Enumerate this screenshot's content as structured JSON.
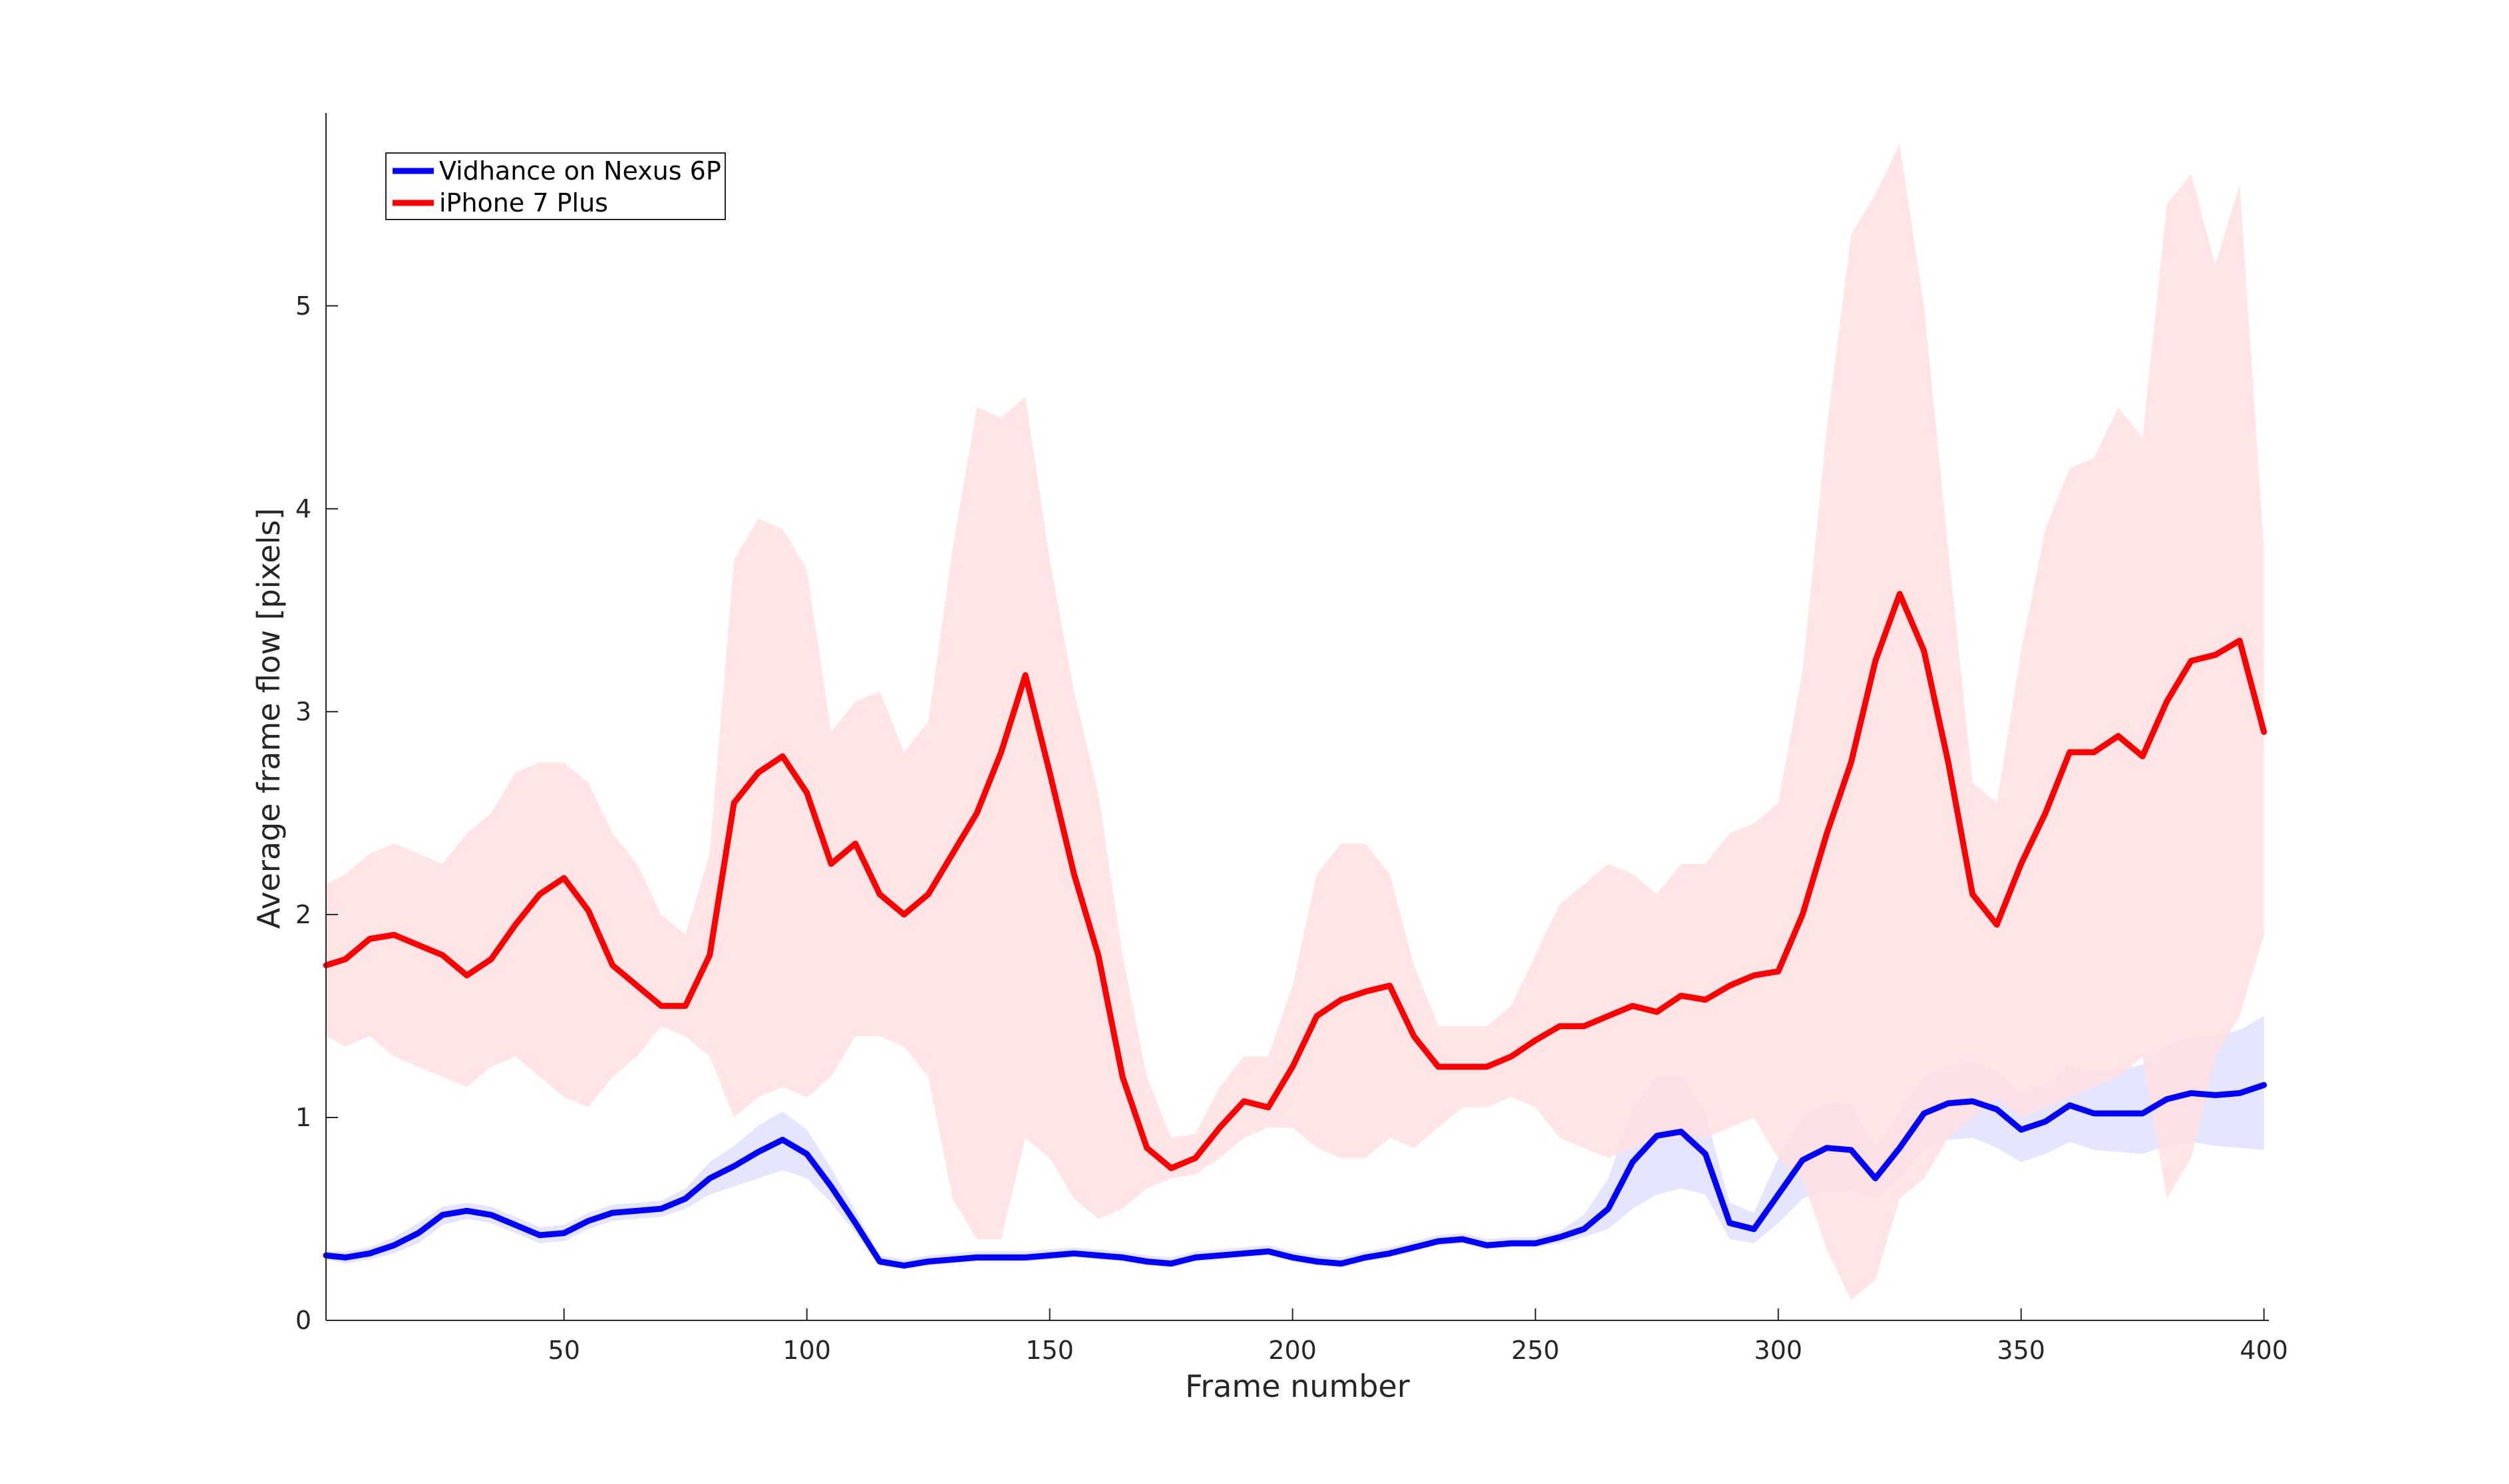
{
  "chart_data": {
    "type": "line",
    "title": "",
    "xlabel": "Frame number",
    "ylabel": "Average frame flow [pixels]",
    "xlim": [
      1,
      401
    ],
    "ylim": [
      0,
      5.95
    ],
    "xticks": [
      50,
      100,
      150,
      200,
      250,
      300,
      350,
      400
    ],
    "yticks": [
      0,
      1,
      2,
      3,
      4,
      5
    ],
    "grid": false,
    "legend_position": "top-left",
    "x": [
      1,
      5,
      10,
      15,
      20,
      25,
      30,
      35,
      40,
      45,
      50,
      55,
      60,
      65,
      70,
      75,
      80,
      85,
      90,
      95,
      100,
      105,
      110,
      115,
      120,
      125,
      130,
      135,
      140,
      145,
      150,
      155,
      160,
      165,
      170,
      175,
      180,
      185,
      190,
      195,
      200,
      205,
      210,
      215,
      220,
      225,
      230,
      235,
      240,
      245,
      250,
      255,
      260,
      265,
      270,
      275,
      280,
      285,
      290,
      295,
      300,
      305,
      310,
      315,
      320,
      325,
      330,
      335,
      340,
      345,
      350,
      355,
      360,
      365,
      370,
      375,
      380,
      385,
      390,
      395,
      400
    ],
    "series": [
      {
        "name": "Vidhance on Nexus 6P",
        "color": "#0000ff",
        "band_color": "#dcdcff",
        "values": [
          0.32,
          0.31,
          0.33,
          0.37,
          0.43,
          0.52,
          0.54,
          0.52,
          0.47,
          0.42,
          0.43,
          0.49,
          0.53,
          0.54,
          0.55,
          0.6,
          0.7,
          0.76,
          0.83,
          0.89,
          0.82,
          0.66,
          0.48,
          0.29,
          0.27,
          0.29,
          0.3,
          0.31,
          0.31,
          0.31,
          0.32,
          0.33,
          0.32,
          0.31,
          0.29,
          0.28,
          0.31,
          0.32,
          0.33,
          0.34,
          0.31,
          0.29,
          0.28,
          0.31,
          0.33,
          0.36,
          0.39,
          0.4,
          0.37,
          0.38,
          0.38,
          0.41,
          0.45,
          0.55,
          0.78,
          0.91,
          0.93,
          0.82,
          0.48,
          0.45,
          0.62,
          0.79,
          0.85,
          0.84,
          0.7,
          0.85,
          1.02,
          1.07,
          1.08,
          1.04,
          0.94,
          0.98,
          1.06,
          1.02,
          1.02,
          1.02,
          1.09,
          1.12,
          1.11,
          1.12,
          1.16
        ],
        "band_lower": [
          0.3,
          0.28,
          0.3,
          0.33,
          0.38,
          0.47,
          0.5,
          0.48,
          0.43,
          0.38,
          0.39,
          0.45,
          0.49,
          0.5,
          0.51,
          0.55,
          0.62,
          0.66,
          0.7,
          0.74,
          0.7,
          0.58,
          0.43,
          0.27,
          0.25,
          0.27,
          0.28,
          0.29,
          0.29,
          0.29,
          0.3,
          0.31,
          0.3,
          0.29,
          0.27,
          0.26,
          0.29,
          0.3,
          0.31,
          0.32,
          0.29,
          0.27,
          0.26,
          0.29,
          0.31,
          0.34,
          0.37,
          0.38,
          0.35,
          0.36,
          0.36,
          0.38,
          0.41,
          0.45,
          0.55,
          0.62,
          0.65,
          0.62,
          0.4,
          0.38,
          0.48,
          0.6,
          0.64,
          0.64,
          0.6,
          0.7,
          0.85,
          0.89,
          0.9,
          0.85,
          0.78,
          0.82,
          0.88,
          0.84,
          0.83,
          0.82,
          0.86,
          0.88,
          0.86,
          0.85,
          0.84
        ],
        "band_upper": [
          0.34,
          0.34,
          0.36,
          0.41,
          0.48,
          0.56,
          0.58,
          0.56,
          0.51,
          0.46,
          0.47,
          0.53,
          0.57,
          0.58,
          0.59,
          0.65,
          0.78,
          0.86,
          0.96,
          1.03,
          0.94,
          0.75,
          0.54,
          0.32,
          0.3,
          0.32,
          0.33,
          0.34,
          0.34,
          0.34,
          0.35,
          0.36,
          0.35,
          0.34,
          0.32,
          0.31,
          0.34,
          0.35,
          0.36,
          0.37,
          0.34,
          0.32,
          0.31,
          0.34,
          0.36,
          0.39,
          0.42,
          0.43,
          0.4,
          0.41,
          0.41,
          0.44,
          0.52,
          0.7,
          1.05,
          1.2,
          1.2,
          1.02,
          0.58,
          0.53,
          0.8,
          1.0,
          1.07,
          1.06,
          0.85,
          1.02,
          1.2,
          1.26,
          1.27,
          1.23,
          1.12,
          1.16,
          1.26,
          1.22,
          1.24,
          1.26,
          1.35,
          1.4,
          1.4,
          1.43,
          1.5
        ]
      },
      {
        "name": "iPhone 7 Plus",
        "color": "#ff0000",
        "band_color": "#ffe0e0",
        "values": [
          1.75,
          1.78,
          1.88,
          1.9,
          1.85,
          1.8,
          1.7,
          1.78,
          1.95,
          2.1,
          2.18,
          2.02,
          1.75,
          1.65,
          1.55,
          1.55,
          1.8,
          2.55,
          2.7,
          2.78,
          2.6,
          2.25,
          2.35,
          2.1,
          2.0,
          2.1,
          2.3,
          2.5,
          2.8,
          3.18,
          2.7,
          2.2,
          1.8,
          1.2,
          0.85,
          0.75,
          0.8,
          0.95,
          1.08,
          1.05,
          1.25,
          1.5,
          1.58,
          1.62,
          1.65,
          1.4,
          1.25,
          1.25,
          1.25,
          1.3,
          1.38,
          1.45,
          1.45,
          1.5,
          1.55,
          1.52,
          1.6,
          1.58,
          1.65,
          1.7,
          1.72,
          2.0,
          2.4,
          2.75,
          3.25,
          3.58,
          3.3,
          2.75,
          2.1,
          1.95,
          2.25,
          2.5,
          2.8,
          2.8,
          2.88,
          2.78,
          3.05,
          3.25,
          3.28,
          3.35,
          2.9
        ],
        "band_lower": [
          1.4,
          1.35,
          1.4,
          1.3,
          1.25,
          1.2,
          1.15,
          1.25,
          1.3,
          1.2,
          1.1,
          1.05,
          1.2,
          1.3,
          1.45,
          1.4,
          1.3,
          1.0,
          1.1,
          1.15,
          1.1,
          1.2,
          1.4,
          1.4,
          1.35,
          1.2,
          0.6,
          0.4,
          0.4,
          0.9,
          0.8,
          0.6,
          0.5,
          0.55,
          0.65,
          0.7,
          0.72,
          0.8,
          0.9,
          0.95,
          0.95,
          0.85,
          0.8,
          0.8,
          0.9,
          0.85,
          0.95,
          1.05,
          1.05,
          1.1,
          1.05,
          0.9,
          0.85,
          0.8,
          0.85,
          0.9,
          0.9,
          0.9,
          0.95,
          1.0,
          0.8,
          0.7,
          0.35,
          0.1,
          0.2,
          0.6,
          0.7,
          0.9,
          1.0,
          1.1,
          1.0,
          1.05,
          1.1,
          1.15,
          1.2,
          1.3,
          0.6,
          0.8,
          1.3,
          1.5,
          1.9
        ],
        "band_upper": [
          2.15,
          2.2,
          2.3,
          2.35,
          2.3,
          2.25,
          2.4,
          2.5,
          2.7,
          2.75,
          2.75,
          2.65,
          2.4,
          2.25,
          2.0,
          1.9,
          2.3,
          3.75,
          3.95,
          3.9,
          3.7,
          2.9,
          3.05,
          3.1,
          2.8,
          2.95,
          3.8,
          4.5,
          4.45,
          4.55,
          3.75,
          3.1,
          2.6,
          1.8,
          1.2,
          0.9,
          0.92,
          1.15,
          1.3,
          1.3,
          1.65,
          2.2,
          2.35,
          2.35,
          2.2,
          1.75,
          1.45,
          1.45,
          1.45,
          1.55,
          1.8,
          2.05,
          2.15,
          2.25,
          2.2,
          2.1,
          2.25,
          2.25,
          2.4,
          2.45,
          2.55,
          3.2,
          4.4,
          5.35,
          5.55,
          5.8,
          5.0,
          3.8,
          2.65,
          2.55,
          3.3,
          3.9,
          4.2,
          4.25,
          4.5,
          4.35,
          5.5,
          5.65,
          5.2,
          5.6,
          3.8
        ]
      }
    ]
  }
}
